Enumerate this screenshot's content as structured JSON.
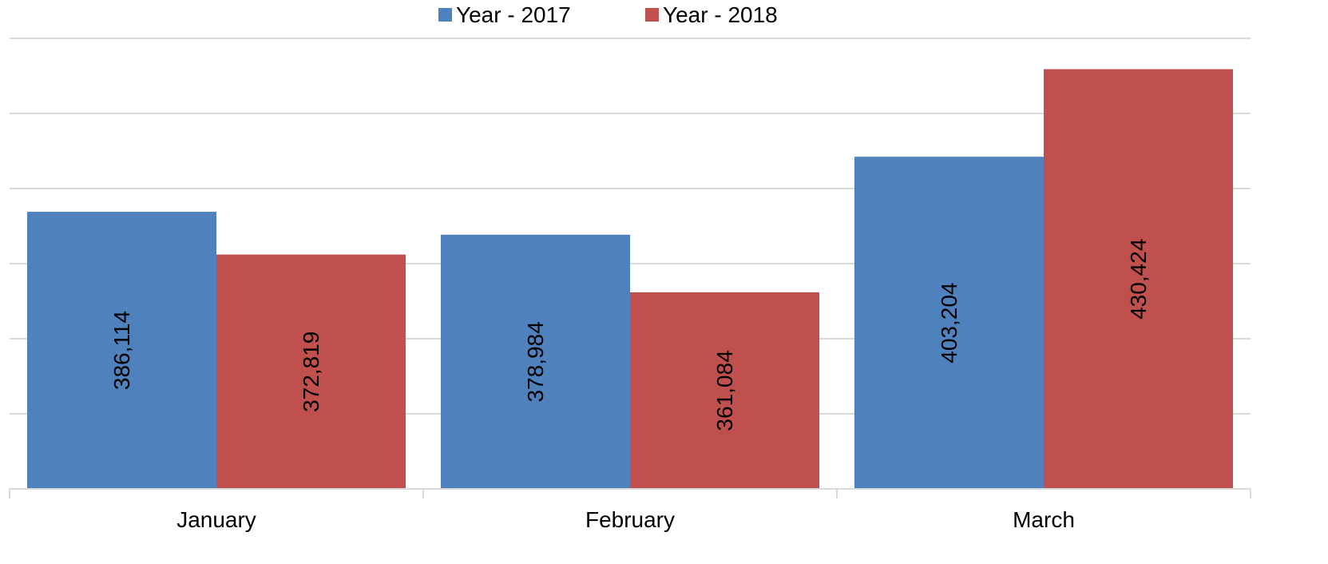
{
  "chart_data": {
    "type": "bar",
    "categories": [
      "January",
      "February",
      "March"
    ],
    "series": [
      {
        "name": "Year - 2017",
        "color": "#4f81bd",
        "values": [
          386114,
          378984,
          403204
        ],
        "labels": [
          "386,114",
          "378,984",
          "403,204"
        ]
      },
      {
        "name": "Year - 2018",
        "color": "#c0504d",
        "values": [
          372819,
          361084,
          430424
        ],
        "labels": [
          "372,819",
          "361,084",
          "430,424"
        ]
      }
    ],
    "title": "",
    "xlabel": "",
    "ylabel": "",
    "ylim": [
      300000,
      440000
    ],
    "y_axis_labels_visible": false,
    "grid": true,
    "legend_position": "top-center"
  }
}
